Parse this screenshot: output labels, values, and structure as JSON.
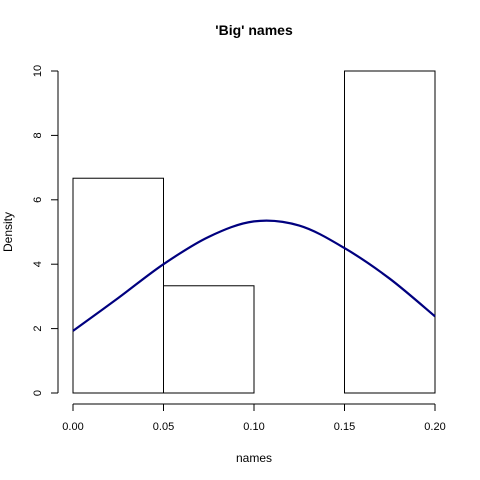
{
  "chart_data": {
    "type": "bar",
    "title": "'Big' names",
    "xlabel": "names",
    "ylabel": "Density",
    "xlim": [
      0.0,
      0.2
    ],
    "ylim": [
      0,
      10
    ],
    "x_ticks": [
      "0.00",
      "0.05",
      "0.10",
      "0.15",
      "0.20"
    ],
    "y_ticks": [
      "0",
      "2",
      "4",
      "6",
      "8",
      "10"
    ],
    "bins": [
      {
        "start": 0.0,
        "end": 0.05,
        "density": 6.67
      },
      {
        "start": 0.05,
        "end": 0.1,
        "density": 3.33
      },
      {
        "start": 0.1,
        "end": 0.15,
        "density": 0
      },
      {
        "start": 0.15,
        "end": 0.2,
        "density": 10.0
      }
    ],
    "density_curve": {
      "color": "#00007f",
      "points": [
        [
          0.0,
          1.93
        ],
        [
          0.025,
          2.95
        ],
        [
          0.05,
          4.0
        ],
        [
          0.075,
          4.85
        ],
        [
          0.1,
          5.33
        ],
        [
          0.125,
          5.2
        ],
        [
          0.15,
          4.5
        ],
        [
          0.175,
          3.55
        ],
        [
          0.2,
          2.38
        ]
      ]
    },
    "bar_outline_color": "#000000",
    "bar_fill": "none",
    "grid": false
  }
}
